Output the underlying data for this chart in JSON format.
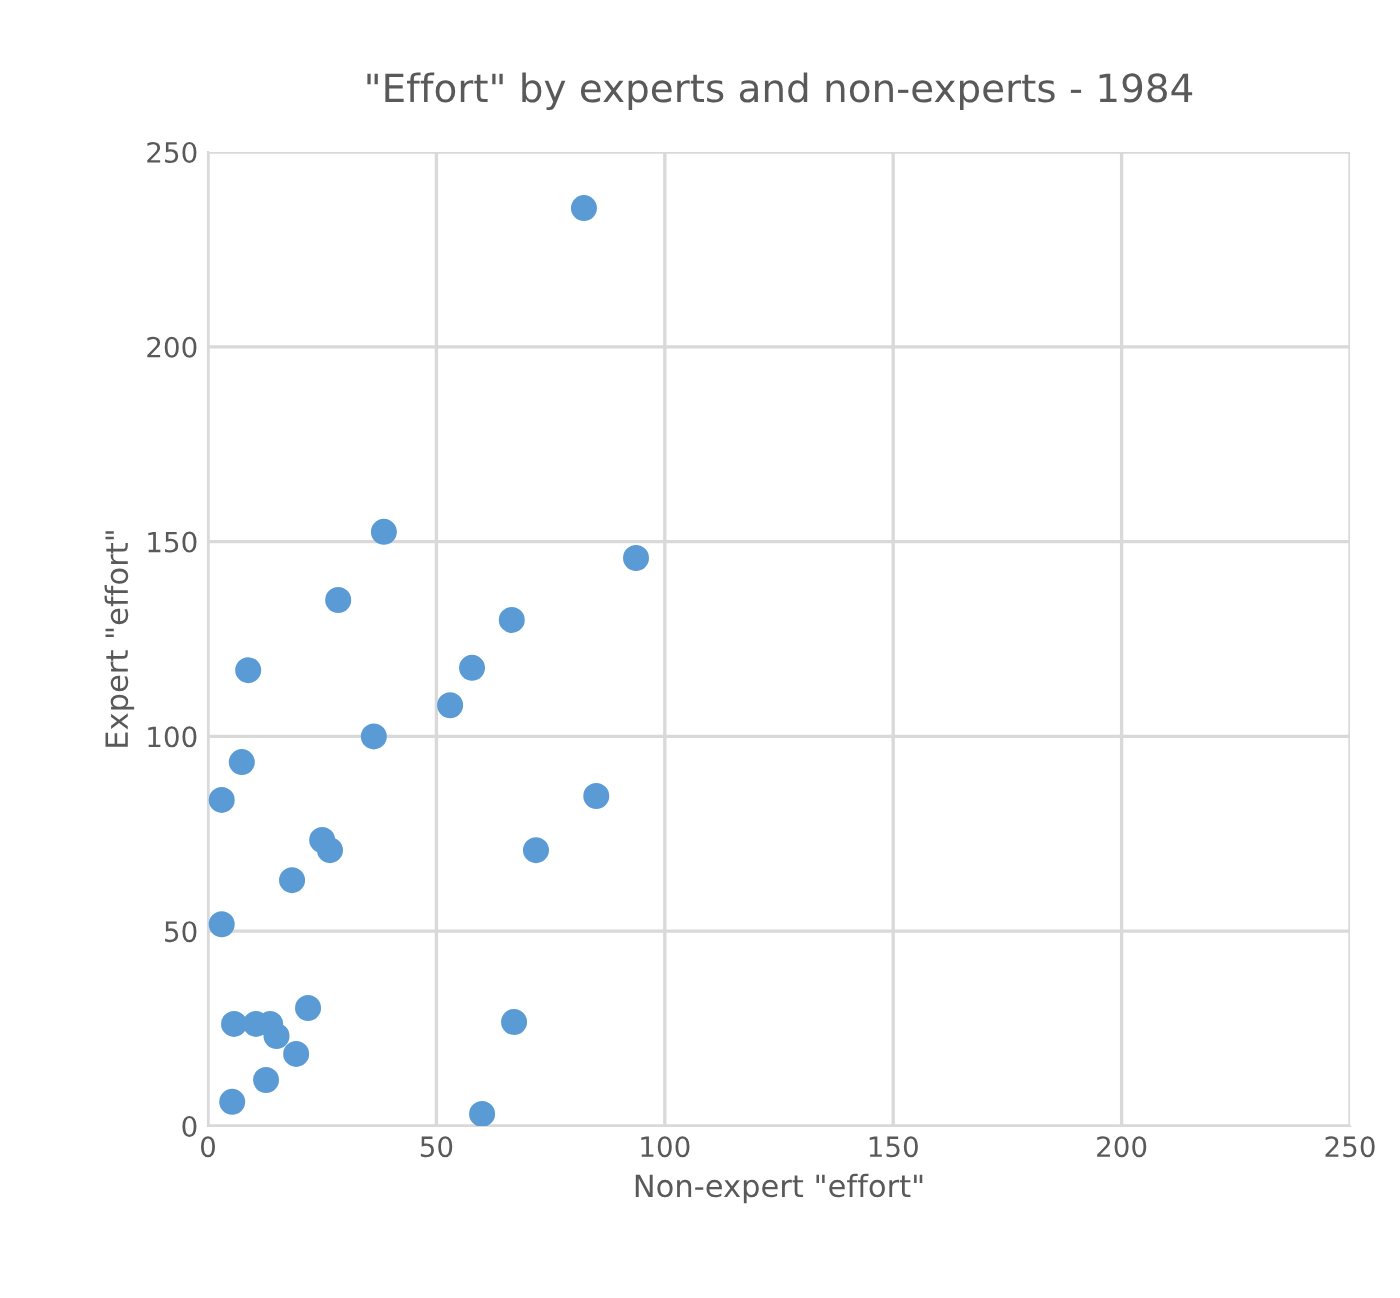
{
  "chart_data": {
    "type": "scatter",
    "title": "\"Effort\" by experts and non-experts - 1984",
    "xlabel": "Non-expert \"effort\"",
    "ylabel": "Expert \"effort\"",
    "x": [
      82.3,
      93.7,
      38.5,
      28.5,
      66.5,
      57.8,
      53,
      8.8,
      36.3,
      7.4,
      3,
      85,
      25,
      26.7,
      71.8,
      18.4,
      3,
      5.7,
      10.5,
      13.6,
      15,
      21.9,
      67,
      19.3,
      12.7,
      5.3,
      60
    ],
    "series": [
      {
        "color": "#5b9bd5",
        "values": [
          235.6,
          145.8,
          152.5,
          135,
          129.9,
          117.6,
          108,
          117,
          100,
          93.4,
          83.7,
          84.7,
          73.4,
          70.8,
          70.8,
          63.1,
          51.8,
          26.2,
          26.2,
          26.2,
          23.1,
          30.3,
          26.7,
          18.5,
          11.8,
          6.2,
          3.1
        ]
      }
    ],
    "xlim": [
      0,
      250
    ],
    "ylim": [
      0,
      250
    ],
    "xticks": [
      0,
      50,
      100,
      150,
      200,
      250
    ],
    "yticks": [
      0,
      50,
      100,
      150,
      200,
      250
    ],
    "grid": true,
    "marker": "circle",
    "legend": false
  }
}
